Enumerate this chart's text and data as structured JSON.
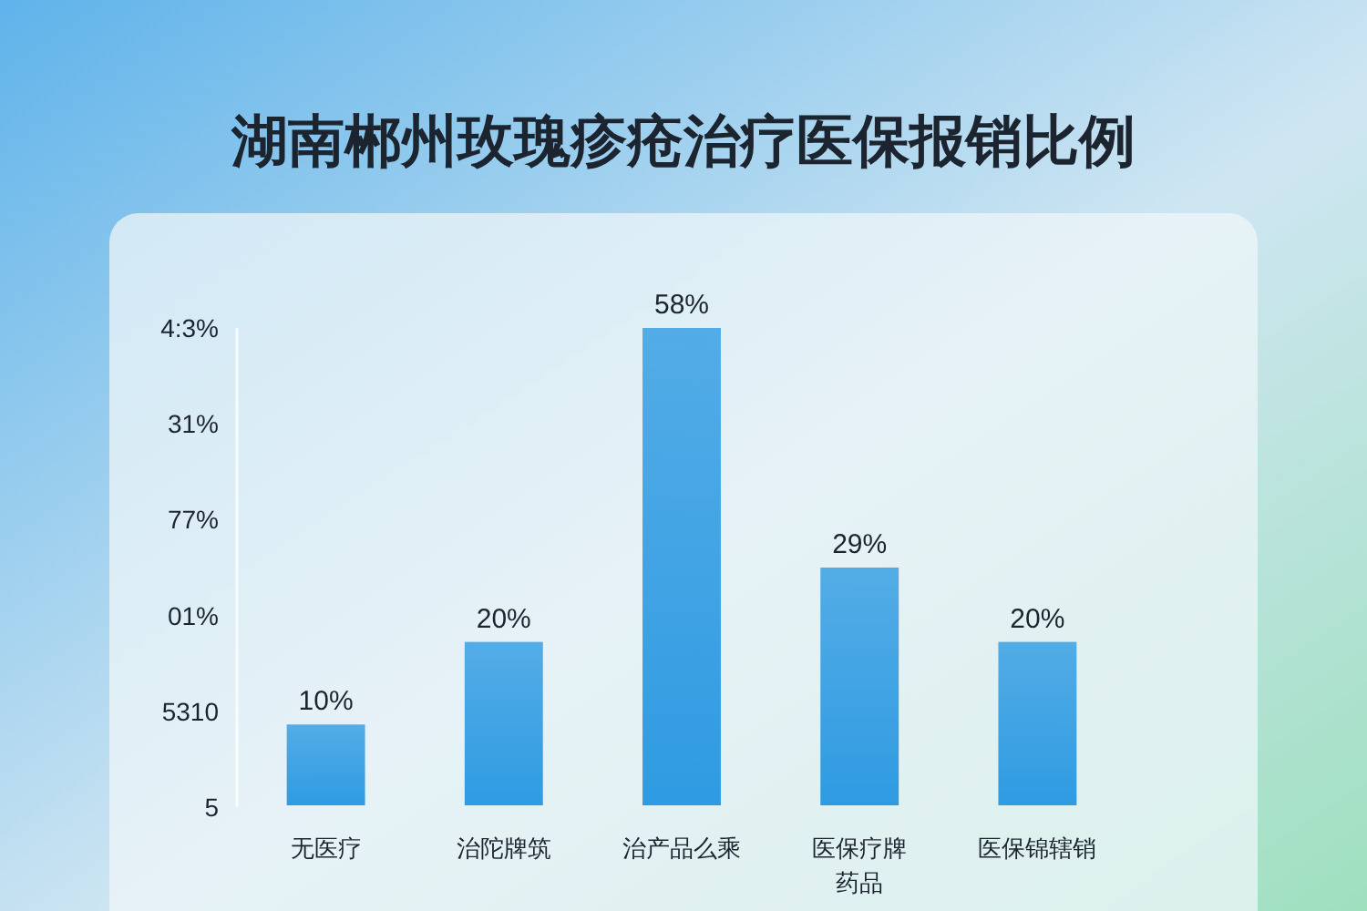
{
  "chart_data": {
    "type": "bar",
    "title": "湖南郴州玫瑰疹疮治疗医保报销比例",
    "categories": [
      "无医疗",
      "治陀牌筑",
      "治产品么乘",
      "医保疗牌药品",
      "医保锦辖销"
    ],
    "values": [
      10,
      20,
      58,
      29,
      20
    ],
    "value_labels": [
      "10%",
      "20%",
      "58%",
      "29%",
      "20%"
    ],
    "color": "#2f9be2",
    "annotations": [
      "4:3%",
      "31%",
      "77%",
      "01%",
      "5310",
      "5"
    ]
  }
}
